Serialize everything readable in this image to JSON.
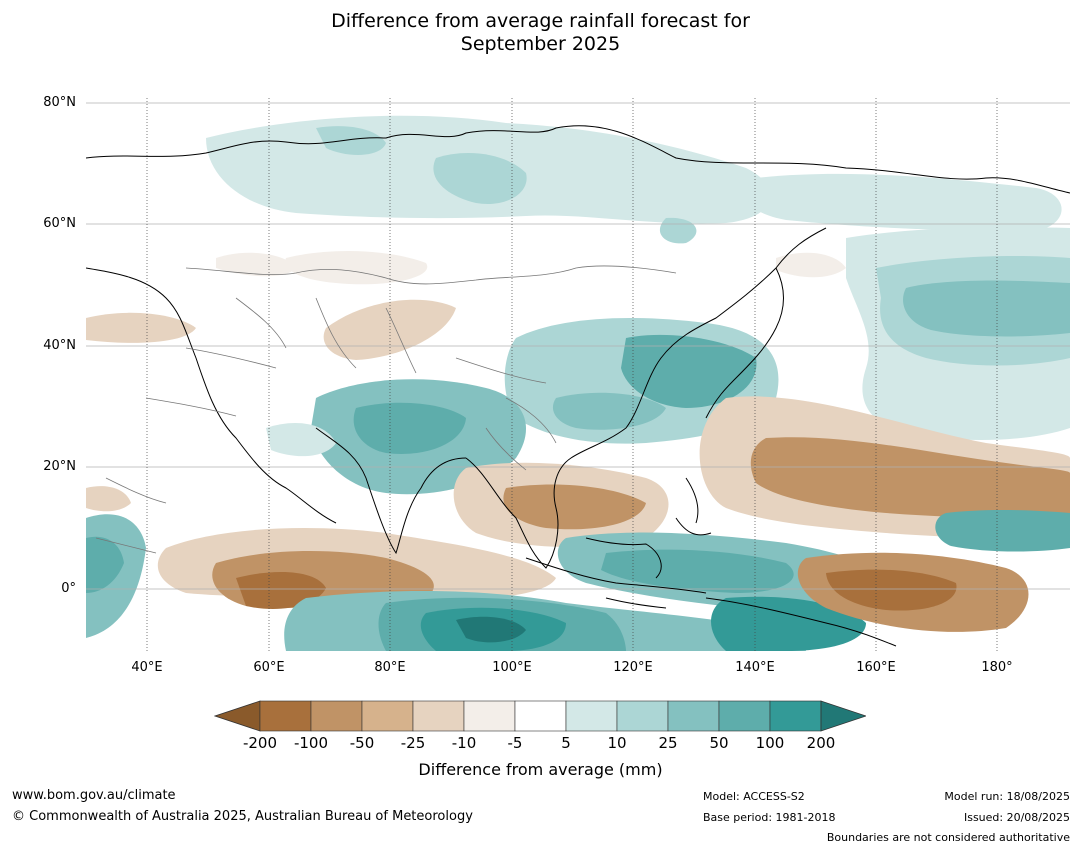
{
  "title_line1": "Difference from average rainfall forecast for",
  "title_line2": "September 2025",
  "lat_labels": [
    "80°N",
    "60°N",
    "40°N",
    "20°N",
    "0°"
  ],
  "lon_labels": [
    "40°E",
    "60°E",
    "80°E",
    "100°E",
    "120°E",
    "140°E",
    "160°E",
    "180°"
  ],
  "colorbar": {
    "ticks": [
      "-200",
      "-100",
      "-50",
      "-25",
      "-10",
      "-5",
      "5",
      "10",
      "25",
      "50",
      "100",
      "200"
    ],
    "colors": [
      "#8a5a2b",
      "#a8703c",
      "#c09366",
      "#d6b28c",
      "#e6d3c0",
      "#f3eee9",
      "#ffffff",
      "#d3e8e7",
      "#acd6d5",
      "#84c1c0",
      "#5eadab",
      "#339a97",
      "#217876"
    ],
    "label": "Difference from average (mm)"
  },
  "footer": {
    "website": "www.bom.gov.au/climate",
    "copyright": "© Commonwealth of Australia 2025, Australian Bureau of Meteorology",
    "model": "Model: ACCESS-S2",
    "base_period": "Base period: 1981-2018",
    "model_run": "Model run: 18/08/2025",
    "issued": "Issued: 20/08/2025",
    "disclaimer": "Boundaries are not considered authoritative"
  }
}
